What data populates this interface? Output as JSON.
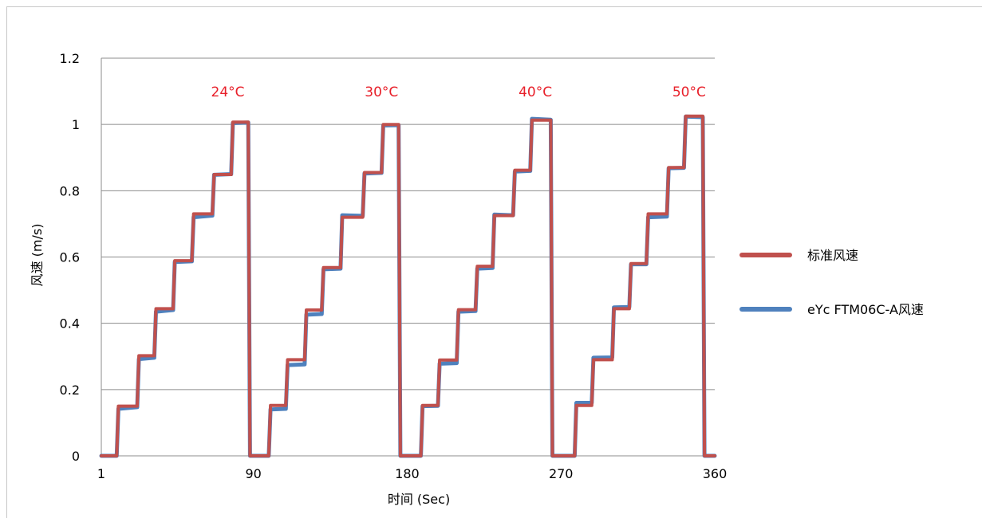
{
  "chart_data": {
    "type": "line",
    "xlabel": "时间 (Sec)",
    "ylabel": "风速 (m/s)",
    "xlim": [
      1,
      360
    ],
    "ylim": [
      0,
      1.2
    ],
    "xticks": [
      1,
      90,
      180,
      270,
      360
    ],
    "yticks": [
      "0",
      "0.2",
      "0.4",
      "0.6",
      "0.8",
      "1",
      "1.2"
    ],
    "grid": true,
    "legend_position": "right",
    "annotations": [
      {
        "text": "24°C",
        "x": 75
      },
      {
        "text": "30°C",
        "x": 165
      },
      {
        "text": "40°C",
        "x": 255
      },
      {
        "text": "50°C",
        "x": 345
      }
    ],
    "series": [
      {
        "name": "标准风速",
        "color": "#c0504d",
        "points": [
          [
            1,
            0
          ],
          [
            10,
            0
          ],
          [
            11,
            0.15
          ],
          [
            22,
            0.15
          ],
          [
            23,
            0.302
          ],
          [
            32,
            0.302
          ],
          [
            33,
            0.444
          ],
          [
            43,
            0.444
          ],
          [
            44,
            0.589
          ],
          [
            54,
            0.589
          ],
          [
            55,
            0.73
          ],
          [
            66,
            0.73
          ],
          [
            67,
            0.849
          ],
          [
            77,
            0.849
          ],
          [
            78,
            1.007
          ],
          [
            87,
            1.007
          ],
          [
            88,
            0
          ],
          [
            99,
            0
          ],
          [
            100,
            0.152
          ],
          [
            109,
            0.152
          ],
          [
            110,
            0.29
          ],
          [
            120,
            0.29
          ],
          [
            121,
            0.44
          ],
          [
            130,
            0.44
          ],
          [
            131,
            0.568
          ],
          [
            141,
            0.568
          ],
          [
            142,
            0.72
          ],
          [
            154,
            0.72
          ],
          [
            155,
            0.855
          ],
          [
            165,
            0.855
          ],
          [
            166,
            1.0
          ],
          [
            175,
            1.0
          ],
          [
            176,
            0
          ],
          [
            188,
            0
          ],
          [
            189,
            0.152
          ],
          [
            198,
            0.152
          ],
          [
            199,
            0.289
          ],
          [
            209,
            0.289
          ],
          [
            210,
            0.441
          ],
          [
            220,
            0.441
          ],
          [
            221,
            0.572
          ],
          [
            230,
            0.572
          ],
          [
            231,
            0.725
          ],
          [
            242,
            0.725
          ],
          [
            243,
            0.862
          ],
          [
            252,
            0.862
          ],
          [
            253,
            1.013
          ],
          [
            264,
            1.013
          ],
          [
            265,
            0
          ],
          [
            278,
            0
          ],
          [
            279,
            0.152
          ],
          [
            288,
            0.152
          ],
          [
            289,
            0.29
          ],
          [
            300,
            0.29
          ],
          [
            301,
            0.444
          ],
          [
            310,
            0.444
          ],
          [
            311,
            0.58
          ],
          [
            320,
            0.58
          ],
          [
            321,
            0.73
          ],
          [
            332,
            0.73
          ],
          [
            333,
            0.87
          ],
          [
            342,
            0.87
          ],
          [
            343,
            1.025
          ],
          [
            353,
            1.025
          ],
          [
            354,
            0
          ],
          [
            360,
            0
          ]
        ]
      },
      {
        "name": "eYc FTM06C-A风速",
        "color": "#4f81bd",
        "points": [
          [
            1,
            0
          ],
          [
            10,
            0
          ],
          [
            11,
            0.142
          ],
          [
            22,
            0.147
          ],
          [
            23,
            0.292
          ],
          [
            32,
            0.296
          ],
          [
            33,
            0.435
          ],
          [
            43,
            0.44
          ],
          [
            44,
            0.585
          ],
          [
            54,
            0.587
          ],
          [
            55,
            0.72
          ],
          [
            66,
            0.725
          ],
          [
            67,
            0.848
          ],
          [
            77,
            0.85
          ],
          [
            78,
            1.004
          ],
          [
            87,
            1.006
          ],
          [
            88,
            0
          ],
          [
            99,
            0
          ],
          [
            100,
            0.14
          ],
          [
            109,
            0.142
          ],
          [
            110,
            0.274
          ],
          [
            120,
            0.276
          ],
          [
            121,
            0.426
          ],
          [
            130,
            0.428
          ],
          [
            131,
            0.563
          ],
          [
            141,
            0.565
          ],
          [
            142,
            0.726
          ],
          [
            154,
            0.724
          ],
          [
            155,
            0.852
          ],
          [
            165,
            0.854
          ],
          [
            166,
            0.997
          ],
          [
            175,
            0.998
          ],
          [
            176,
            0
          ],
          [
            188,
            0
          ],
          [
            189,
            0.15
          ],
          [
            198,
            0.151
          ],
          [
            199,
            0.278
          ],
          [
            209,
            0.28
          ],
          [
            210,
            0.435
          ],
          [
            220,
            0.437
          ],
          [
            221,
            0.565
          ],
          [
            230,
            0.567
          ],
          [
            231,
            0.728
          ],
          [
            242,
            0.726
          ],
          [
            243,
            0.858
          ],
          [
            252,
            0.86
          ],
          [
            253,
            1.017
          ],
          [
            264,
            1.014
          ],
          [
            265,
            0
          ],
          [
            278,
            0
          ],
          [
            279,
            0.16
          ],
          [
            288,
            0.16
          ],
          [
            289,
            0.296
          ],
          [
            300,
            0.297
          ],
          [
            301,
            0.448
          ],
          [
            310,
            0.449
          ],
          [
            311,
            0.578
          ],
          [
            320,
            0.578
          ],
          [
            321,
            0.72
          ],
          [
            332,
            0.722
          ],
          [
            333,
            0.868
          ],
          [
            342,
            0.869
          ],
          [
            343,
            1.024
          ],
          [
            353,
            1.022
          ],
          [
            354,
            0
          ],
          [
            360,
            0
          ]
        ]
      }
    ]
  }
}
